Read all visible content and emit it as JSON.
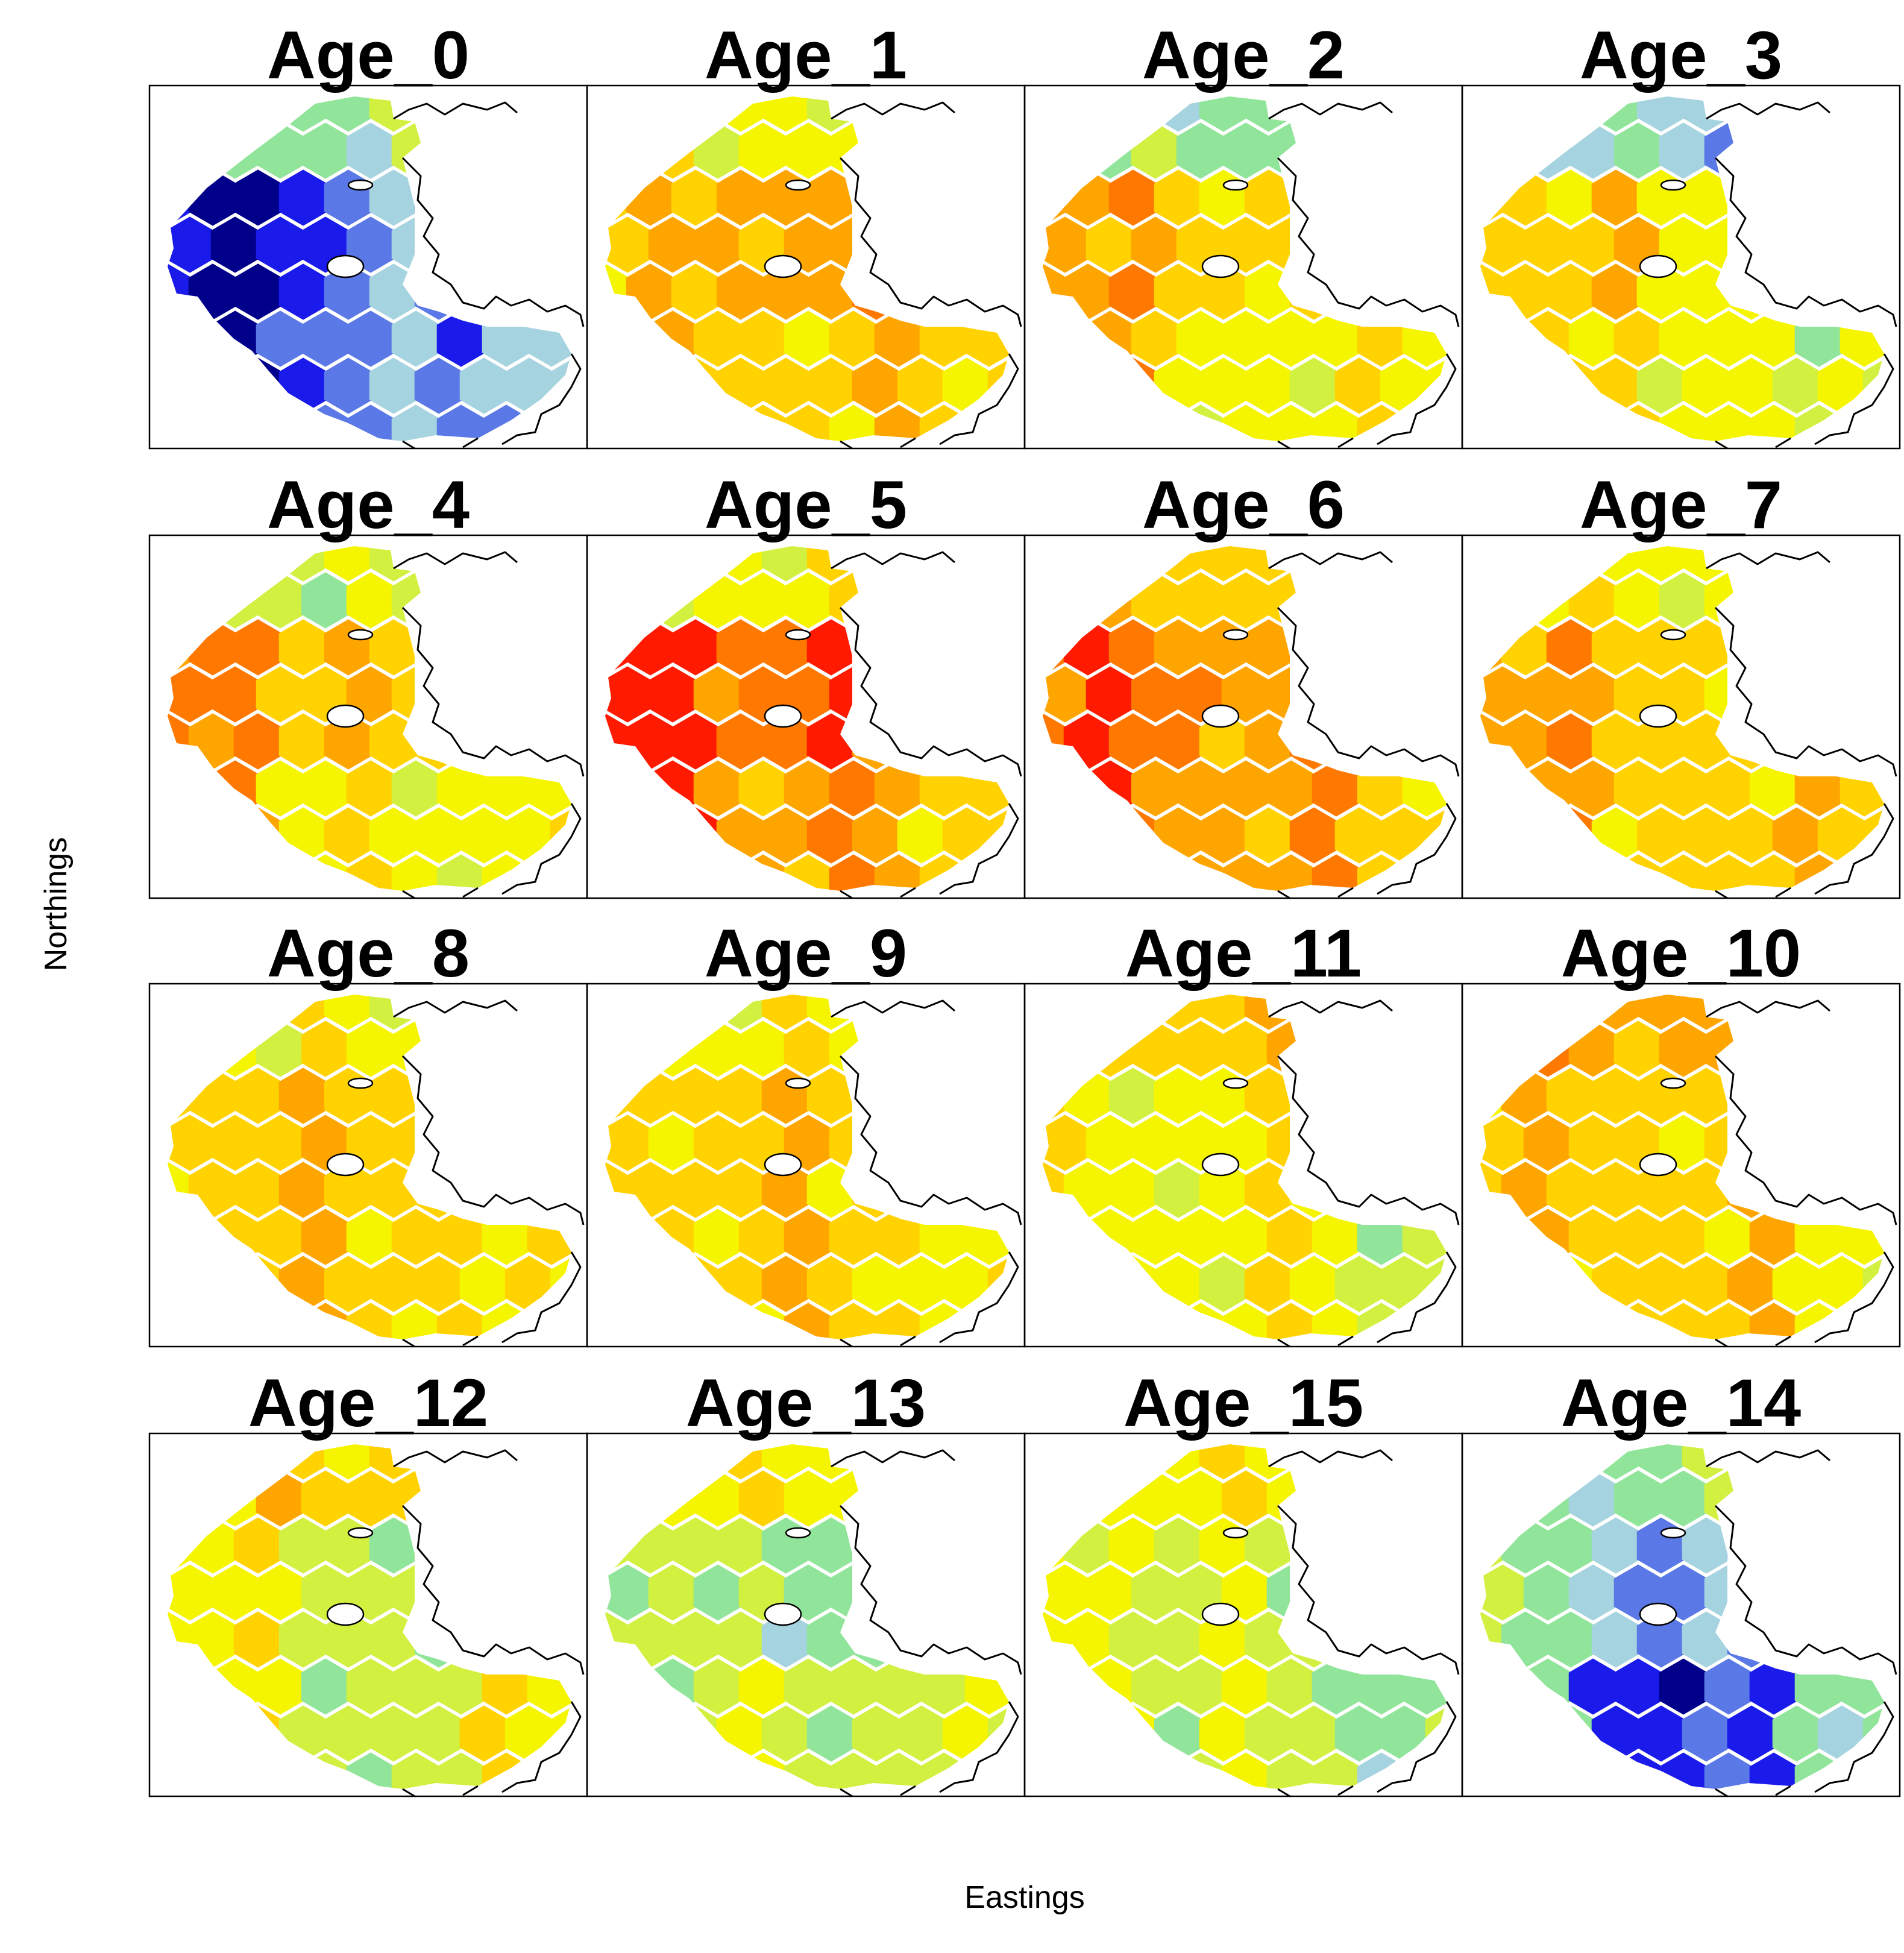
{
  "figure": {
    "xlabel": "Eastings",
    "ylabel": "Northings"
  },
  "palette": {
    "very_low": "#00008b",
    "low": "#1a1aeb",
    "mid_low": "#5a78e6",
    "light_blue": "#a6d3e0",
    "light_green": "#91e59a",
    "yellow_green": "#d2f040",
    "yellow": "#f5f500",
    "gold": "#ffd200",
    "orange": "#ffa500",
    "dark_orange": "#ff7800",
    "red": "#ff1a00"
  },
  "panels": [
    {
      "title": "Age_0",
      "pattern": [
        -5,
        -4,
        -3,
        -3,
        -2,
        -1
      ]
    },
    {
      "title": "Age_1",
      "pattern": [
        2,
        3,
        3,
        2,
        2,
        1
      ]
    },
    {
      "title": "Age_2",
      "pattern": [
        3,
        2,
        2,
        1,
        1,
        -1
      ]
    },
    {
      "title": "Age_3",
      "pattern": [
        2,
        2,
        1,
        1,
        0,
        -2
      ]
    },
    {
      "title": "Age_4",
      "pattern": [
        4,
        2,
        2,
        1,
        1,
        0
      ]
    },
    {
      "title": "Age_5",
      "pattern": [
        5,
        4,
        4,
        3,
        2,
        1
      ]
    },
    {
      "title": "Age_6",
      "pattern": [
        4,
        4,
        3,
        3,
        2,
        2
      ]
    },
    {
      "title": "Age_7",
      "pattern": [
        3,
        2,
        2,
        2,
        2,
        1
      ]
    },
    {
      "title": "Age_8",
      "pattern": [
        2,
        2,
        2,
        2,
        1,
        1
      ]
    },
    {
      "title": "Age_9",
      "pattern": [
        2,
        2,
        2,
        2,
        1,
        1
      ]
    },
    {
      "title": "Age_11",
      "pattern": [
        1,
        1,
        1,
        1,
        0,
        2
      ]
    },
    {
      "title": "Age_10",
      "pattern": [
        2,
        2,
        2,
        2,
        1,
        3
      ]
    },
    {
      "title": "Age_12",
      "pattern": [
        1,
        0,
        0,
        0,
        1,
        2
      ]
    },
    {
      "title": "Age_13",
      "pattern": [
        0,
        -1,
        -1,
        0,
        0,
        1
      ]
    },
    {
      "title": "Age_15",
      "pattern": [
        1,
        0,
        0,
        0,
        -1,
        1
      ]
    },
    {
      "title": "Age_14",
      "pattern": [
        -1,
        -2,
        -3,
        -4,
        -1,
        -1
      ]
    }
  ]
}
